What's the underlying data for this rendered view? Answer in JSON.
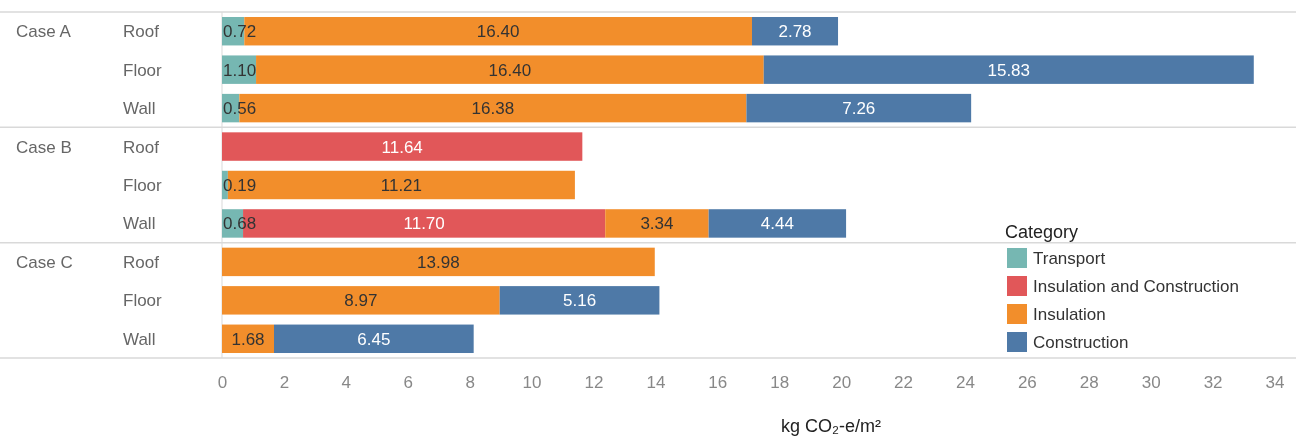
{
  "chart_data": {
    "type": "bar",
    "orientation": "horizontal",
    "stacked": true,
    "categories": [
      "Roof",
      "Floor",
      "Wall",
      "Roof",
      "Floor",
      "Wall",
      "Roof",
      "Floor",
      "Wall"
    ],
    "series": [
      {
        "name": "Transport",
        "color": "#76b7b2",
        "values": [
          0.72,
          1.1,
          0.56,
          null,
          0.19,
          0.68,
          null,
          null,
          null
        ],
        "value_labels": [
          "0.72",
          "1.10",
          "0.56",
          null,
          "0.19",
          "0.68",
          null,
          null,
          null
        ]
      },
      {
        "name": "Insulation and Construction",
        "color": "#e15759",
        "values": [
          null,
          null,
          null,
          11.64,
          null,
          11.7,
          null,
          null,
          null
        ],
        "value_labels": [
          null,
          null,
          null,
          "11.64",
          null,
          "11.70",
          null,
          null,
          null
        ]
      },
      {
        "name": "Insulation",
        "color": "#f28e2b",
        "values": [
          16.4,
          16.4,
          16.38,
          null,
          11.21,
          3.34,
          13.98,
          8.97,
          1.68
        ],
        "value_labels": [
          "16.40",
          "16.40",
          "16.38",
          null,
          "11.21",
          "3.34",
          "13.98",
          "8.97",
          "1.68"
        ]
      },
      {
        "name": "Construction",
        "color": "#4e79a7",
        "values": [
          2.78,
          15.83,
          7.26,
          null,
          null,
          4.44,
          null,
          5.16,
          6.45
        ],
        "value_labels": [
          "2.78",
          "15.83",
          "7.26",
          null,
          null,
          "4.44",
          null,
          "5.16",
          "6.45"
        ]
      }
    ],
    "annotations": [
      "Case A",
      "Case B",
      "Case C"
    ],
    "xlabel": "kg CO₂-e/m²",
    "xlim": [
      0,
      34.5
    ],
    "xticks": [
      0,
      2,
      4,
      6,
      8,
      10,
      12,
      14,
      16,
      18,
      20,
      22,
      24,
      26,
      28,
      30,
      32,
      34
    ],
    "legend": "bottom right",
    "legend_title": "Category"
  }
}
